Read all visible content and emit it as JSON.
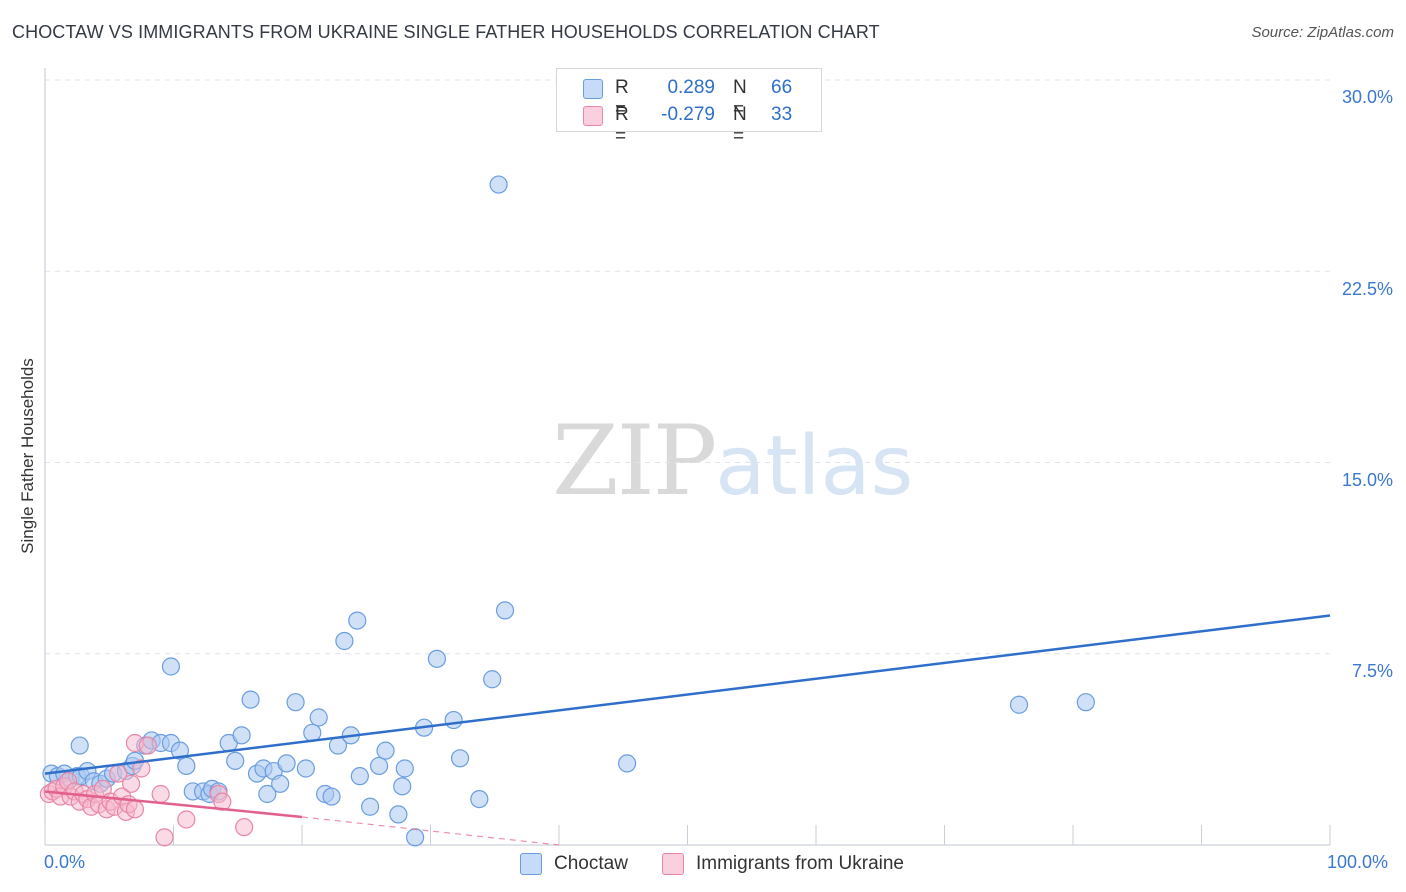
{
  "header": {
    "title": "CHOCTAW VS IMMIGRANTS FROM UKRAINE SINGLE FATHER HOUSEHOLDS CORRELATION CHART",
    "source": "Source: ZipAtlas.com"
  },
  "legend": {
    "rows": [
      {
        "r_label": "R =",
        "r_value": "0.289",
        "n_label": "N =",
        "n_value": "66",
        "color": "#aac8f0"
      },
      {
        "r_label": "R =",
        "r_value": "-0.279",
        "n_label": "N =",
        "n_value": "33",
        "color": "#f5b8cb"
      }
    ]
  },
  "watermark": {
    "zip": "ZIP",
    "atlas": "atlas"
  },
  "colors": {
    "blue_fill": "#aac8f0",
    "blue_stroke": "#6a9ddf",
    "blue_line": "#2f6fcb",
    "pink_fill": "#f5b8cb",
    "pink_stroke": "#e886a6",
    "pink_line": "#e2608c",
    "grid": "#dde3ea",
    "axis_text": "#3a78d0"
  },
  "chart_data": {
    "type": "scatter",
    "title": "CHOCTAW VS IMMIGRANTS FROM UKRAINE SINGLE FATHER HOUSEHOLDS CORRELATION CHART",
    "xlabel": "",
    "ylabel": "Single Father Households",
    "xlim": [
      0,
      100
    ],
    "ylim": [
      0,
      30
    ],
    "x_tick_labels": [
      "0.0%",
      "100.0%"
    ],
    "y_ticks": [
      7.5,
      15.0,
      22.5,
      30.0
    ],
    "y_tick_labels": [
      "7.5%",
      "15.0%",
      "22.5%",
      "30.0%"
    ],
    "legend_position": "top-center",
    "series": [
      {
        "name": "Choctaw",
        "r": 0.289,
        "n": 66,
        "trend": {
          "x": [
            0,
            100
          ],
          "y": [
            2.8,
            9.0
          ]
        },
        "points": [
          [
            0.5,
            2.8
          ],
          [
            1.0,
            2.7
          ],
          [
            1.5,
            2.8
          ],
          [
            2.0,
            2.6
          ],
          [
            2.5,
            2.7
          ],
          [
            2.8,
            2.7
          ],
          [
            2.7,
            3.9
          ],
          [
            3.3,
            2.9
          ],
          [
            3.8,
            2.5
          ],
          [
            4.3,
            2.4
          ],
          [
            4.8,
            2.6
          ],
          [
            5.3,
            2.8
          ],
          [
            6.3,
            2.9
          ],
          [
            6.8,
            3.1
          ],
          [
            7.0,
            3.3
          ],
          [
            7.8,
            3.9
          ],
          [
            8.3,
            4.1
          ],
          [
            9.0,
            4.0
          ],
          [
            9.8,
            4.0
          ],
          [
            10.5,
            3.7
          ],
          [
            11.0,
            3.1
          ],
          [
            11.5,
            2.1
          ],
          [
            12.3,
            2.1
          ],
          [
            12.8,
            2.0
          ],
          [
            13.0,
            2.2
          ],
          [
            13.5,
            2.1
          ],
          [
            14.3,
            4.0
          ],
          [
            14.8,
            3.3
          ],
          [
            15.3,
            4.3
          ],
          [
            16.0,
            5.7
          ],
          [
            16.5,
            2.8
          ],
          [
            17.0,
            3.0
          ],
          [
            17.3,
            2.0
          ],
          [
            17.8,
            2.9
          ],
          [
            18.8,
            3.2
          ],
          [
            19.5,
            5.6
          ],
          [
            20.3,
            3.0
          ],
          [
            20.8,
            4.4
          ],
          [
            21.3,
            5.0
          ],
          [
            21.8,
            2.0
          ],
          [
            22.3,
            1.9
          ],
          [
            22.8,
            3.9
          ],
          [
            23.8,
            4.3
          ],
          [
            24.5,
            2.7
          ],
          [
            25.3,
            1.5
          ],
          [
            26.0,
            3.1
          ],
          [
            26.5,
            3.7
          ],
          [
            27.5,
            1.2
          ],
          [
            27.8,
            2.3
          ],
          [
            28.0,
            3.0
          ],
          [
            28.8,
            0.3
          ],
          [
            29.5,
            4.6
          ],
          [
            30.5,
            7.3
          ],
          [
            31.8,
            4.9
          ],
          [
            32.3,
            3.4
          ],
          [
            33.8,
            1.8
          ],
          [
            34.8,
            6.5
          ],
          [
            35.8,
            9.2
          ],
          [
            9.8,
            7.0
          ],
          [
            23.3,
            8.0
          ],
          [
            24.3,
            8.8
          ],
          [
            35.3,
            25.9
          ],
          [
            45.3,
            3.2
          ],
          [
            75.8,
            5.5
          ],
          [
            81.0,
            5.6
          ],
          [
            18.3,
            2.4
          ]
        ]
      },
      {
        "name": "Immigrants from Ukraine",
        "r": -0.279,
        "n": 33,
        "trend": {
          "x": [
            0,
            20
          ],
          "y": [
            2.1,
            1.1
          ],
          "dashed_to": {
            "x": 40,
            "y": 0.0
          }
        },
        "points": [
          [
            0.3,
            2.0
          ],
          [
            0.6,
            2.1
          ],
          [
            0.9,
            2.2
          ],
          [
            1.2,
            1.9
          ],
          [
            1.5,
            2.3
          ],
          [
            1.8,
            2.5
          ],
          [
            2.0,
            1.9
          ],
          [
            2.3,
            2.1
          ],
          [
            2.7,
            1.7
          ],
          [
            3.0,
            2.0
          ],
          [
            3.3,
            1.8
          ],
          [
            3.6,
            1.5
          ],
          [
            3.9,
            2.0
          ],
          [
            4.2,
            1.6
          ],
          [
            4.5,
            2.2
          ],
          [
            4.8,
            1.4
          ],
          [
            5.1,
            1.7
          ],
          [
            5.4,
            1.5
          ],
          [
            5.7,
            2.8
          ],
          [
            6.0,
            1.9
          ],
          [
            6.3,
            1.3
          ],
          [
            6.5,
            1.6
          ],
          [
            6.7,
            2.4
          ],
          [
            7.0,
            1.4
          ],
          [
            7.5,
            3.0
          ],
          [
            7.0,
            4.0
          ],
          [
            8.0,
            3.9
          ],
          [
            9.0,
            2.0
          ],
          [
            9.3,
            0.3
          ],
          [
            11.0,
            1.0
          ],
          [
            13.5,
            2.0
          ],
          [
            13.8,
            1.7
          ],
          [
            15.5,
            0.7
          ]
        ]
      }
    ]
  }
}
